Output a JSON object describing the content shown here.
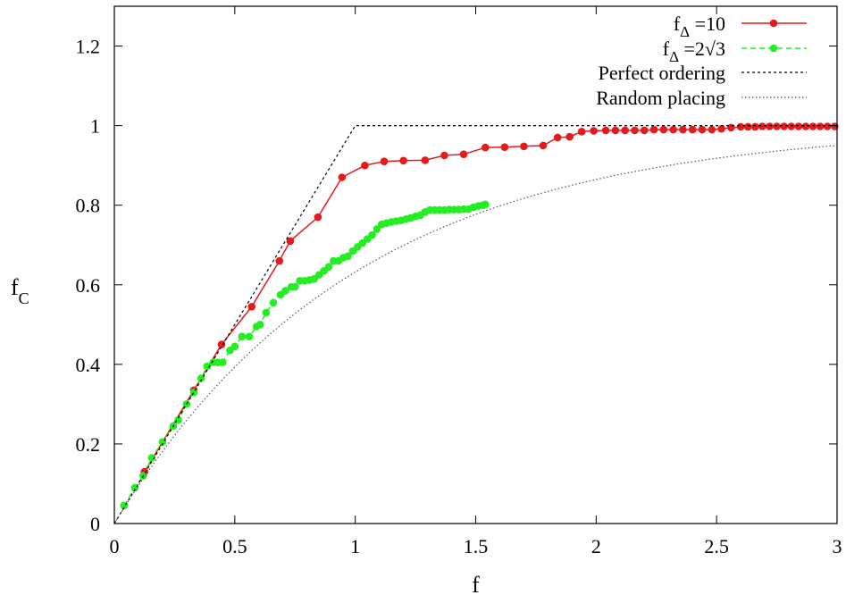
{
  "chart_data": {
    "type": "line",
    "title": "",
    "xlabel": "f",
    "ylabel_main": "f",
    "ylabel_sub": "C",
    "xlim": [
      0,
      3
    ],
    "ylim": [
      0,
      1.3
    ],
    "x_ticks": [
      0,
      0.5,
      1,
      1.5,
      2,
      2.5,
      3
    ],
    "x_tick_labels": [
      "0",
      "0.5",
      "1",
      "1.5",
      "2",
      "2.5",
      "3"
    ],
    "y_ticks": [
      0,
      0.2,
      0.4,
      0.6,
      0.8,
      1,
      1.2
    ],
    "y_tick_labels": [
      "0",
      "0.2",
      "0.4",
      "0.6",
      "0.8",
      "1",
      "1.2"
    ],
    "grid": false,
    "legend_position": "top-right",
    "series": [
      {
        "name_main": "f",
        "name_sub": "Δ",
        "name_rest": " =10",
        "color": "#e41a1c",
        "style": "solid",
        "marker": "circle",
        "x": [
          0.125,
          0.33,
          0.445,
          0.57,
          0.685,
          0.73,
          0.845,
          0.945,
          1.04,
          1.12,
          1.2,
          1.29,
          1.37,
          1.45,
          1.54,
          1.62,
          1.7,
          1.78,
          1.84,
          1.89,
          1.94,
          1.99,
          2.04,
          2.08,
          2.12,
          2.16,
          2.2,
          2.24,
          2.28,
          2.32,
          2.36,
          2.4,
          2.44,
          2.48,
          2.52,
          2.56,
          2.6,
          2.63,
          2.66,
          2.69,
          2.72,
          2.75,
          2.78,
          2.81,
          2.84,
          2.87,
          2.9,
          2.93,
          2.96,
          2.99
        ],
        "y": [
          0.13,
          0.335,
          0.45,
          0.545,
          0.66,
          0.71,
          0.77,
          0.87,
          0.9,
          0.91,
          0.912,
          0.913,
          0.925,
          0.928,
          0.945,
          0.946,
          0.948,
          0.95,
          0.97,
          0.972,
          0.985,
          0.987,
          0.988,
          0.988,
          0.988,
          0.988,
          0.988,
          0.99,
          0.99,
          0.99,
          0.99,
          0.99,
          0.99,
          0.99,
          0.992,
          0.995,
          0.997,
          0.997,
          0.997,
          0.998,
          0.998,
          0.998,
          0.998,
          0.998,
          0.998,
          0.998,
          0.998,
          0.998,
          0.998,
          0.998
        ]
      },
      {
        "name_main": "f",
        "name_sub": "Δ",
        "name_rest": " =2√3",
        "color": "#22ee22",
        "style": "dashed",
        "marker": "circle",
        "x": [
          0.04,
          0.085,
          0.12,
          0.155,
          0.2,
          0.245,
          0.265,
          0.3,
          0.33,
          0.36,
          0.385,
          0.41,
          0.43,
          0.45,
          0.48,
          0.5,
          0.53,
          0.56,
          0.59,
          0.605,
          0.63,
          0.66,
          0.69,
          0.71,
          0.735,
          0.75,
          0.77,
          0.79,
          0.81,
          0.83,
          0.85,
          0.87,
          0.89,
          0.91,
          0.93,
          0.95,
          0.97,
          0.99,
          1.01,
          1.03,
          1.05,
          1.07,
          1.09,
          1.11,
          1.13,
          1.15,
          1.17,
          1.19,
          1.21,
          1.23,
          1.25,
          1.27,
          1.29,
          1.31,
          1.33,
          1.35,
          1.37,
          1.39,
          1.41,
          1.43,
          1.45,
          1.47,
          1.49,
          1.51,
          1.53,
          1.54
        ],
        "y": [
          0.045,
          0.09,
          0.12,
          0.165,
          0.205,
          0.245,
          0.26,
          0.3,
          0.33,
          0.365,
          0.395,
          0.405,
          0.405,
          0.405,
          0.435,
          0.445,
          0.47,
          0.47,
          0.495,
          0.5,
          0.53,
          0.555,
          0.575,
          0.585,
          0.595,
          0.595,
          0.61,
          0.61,
          0.612,
          0.615,
          0.625,
          0.635,
          0.645,
          0.66,
          0.66,
          0.668,
          0.672,
          0.685,
          0.695,
          0.705,
          0.715,
          0.725,
          0.74,
          0.752,
          0.755,
          0.758,
          0.76,
          0.762,
          0.765,
          0.768,
          0.772,
          0.775,
          0.783,
          0.788,
          0.788,
          0.788,
          0.788,
          0.789,
          0.789,
          0.789,
          0.79,
          0.79,
          0.795,
          0.798,
          0.8,
          0.802
        ]
      },
      {
        "name": "Perfect ordering",
        "color": "#000000",
        "style": "dashed",
        "marker": "none",
        "x": [
          0,
          1,
          3
        ],
        "y": [
          0,
          1,
          1
        ]
      },
      {
        "name": "Random placing",
        "color": "#555555",
        "style": "dotted",
        "marker": "none",
        "function": "1 - exp(-f)"
      }
    ]
  }
}
